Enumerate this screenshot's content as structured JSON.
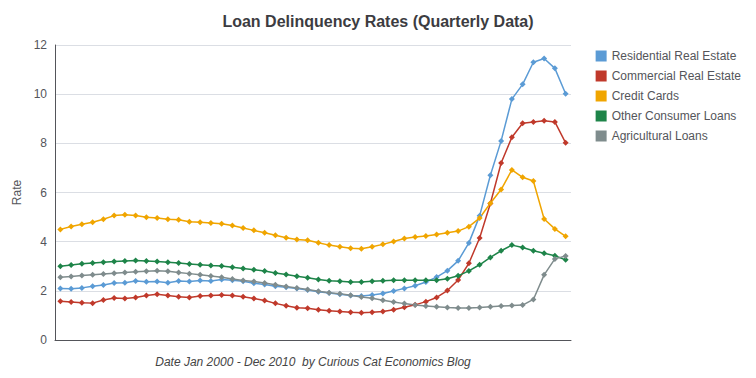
{
  "chart_data": {
    "type": "line",
    "title": "Loan Delinquency Rates (Quarterly Data)",
    "xlabel": "Date Jan 2000 - Dec 2010  by Curious Cat Economics Blog",
    "ylabel": "Rate",
    "categories": [
      null,
      null,
      null,
      null,
      null,
      null,
      null,
      null,
      null,
      null,
      null,
      null,
      null,
      null,
      null,
      null,
      null,
      null,
      null,
      null,
      null,
      null,
      null,
      null,
      null,
      null,
      null,
      null,
      null,
      null,
      null,
      null,
      null,
      null,
      null,
      null,
      null,
      null,
      null,
      null,
      null,
      null,
      null,
      null,
      null,
      null,
      null,
      null
    ],
    "ylim": [
      0,
      12
    ],
    "yticks": [
      0,
      2,
      4,
      6,
      8,
      10,
      12
    ],
    "grid": true,
    "legend": "right",
    "tick_labels": "y",
    "marker": "diamond",
    "series": [
      {
        "name": "Residential Real Estate",
        "color": "#5b9bd5",
        "values": [
          2.09,
          2.08,
          2.12,
          2.19,
          2.24,
          2.32,
          2.33,
          2.4,
          2.37,
          2.38,
          2.33,
          2.4,
          2.38,
          2.42,
          2.4,
          2.46,
          2.43,
          2.39,
          2.31,
          2.26,
          2.19,
          2.15,
          2.09,
          2.03,
          1.96,
          1.91,
          1.86,
          1.81,
          1.79,
          1.83,
          1.89,
          1.99,
          2.1,
          2.21,
          2.36,
          2.56,
          2.82,
          3.22,
          3.95,
          5.05,
          6.7,
          8.1,
          9.8,
          10.4,
          11.3,
          11.45,
          11.05,
          10.02
        ]
      },
      {
        "name": "Commercial Real Estate",
        "color": "#c0392b",
        "values": [
          1.58,
          1.55,
          1.52,
          1.5,
          1.63,
          1.71,
          1.69,
          1.73,
          1.81,
          1.86,
          1.81,
          1.76,
          1.73,
          1.79,
          1.81,
          1.83,
          1.81,
          1.76,
          1.69,
          1.61,
          1.49,
          1.39,
          1.31,
          1.29,
          1.23,
          1.19,
          1.16,
          1.13,
          1.11,
          1.13,
          1.16,
          1.23,
          1.33,
          1.43,
          1.56,
          1.73,
          2.01,
          2.44,
          3.12,
          4.15,
          5.55,
          7.2,
          8.25,
          8.82,
          8.87,
          8.92,
          8.87,
          8.02
        ]
      },
      {
        "name": "Credit Cards",
        "color": "#f0a500",
        "values": [
          4.5,
          4.62,
          4.71,
          4.79,
          4.91,
          5.06,
          5.09,
          5.06,
          4.99,
          4.96,
          4.91,
          4.89,
          4.81,
          4.79,
          4.76,
          4.73,
          4.66,
          4.56,
          4.46,
          4.36,
          4.26,
          4.16,
          4.09,
          4.06,
          3.96,
          3.86,
          3.79,
          3.73,
          3.71,
          3.79,
          3.89,
          4.01,
          4.13,
          4.19,
          4.23,
          4.29,
          4.36,
          4.43,
          4.61,
          4.96,
          5.56,
          6.12,
          6.92,
          6.62,
          6.47,
          4.92,
          4.52,
          4.22
        ]
      },
      {
        "name": "Other Consumer Loans",
        "color": "#1e8449",
        "values": [
          3.0,
          3.05,
          3.1,
          3.13,
          3.16,
          3.19,
          3.21,
          3.23,
          3.21,
          3.19,
          3.16,
          3.13,
          3.09,
          3.06,
          3.03,
          3.01,
          2.96,
          2.91,
          2.86,
          2.81,
          2.73,
          2.66,
          2.59,
          2.53,
          2.46,
          2.41,
          2.39,
          2.36,
          2.36,
          2.39,
          2.41,
          2.43,
          2.43,
          2.43,
          2.43,
          2.43,
          2.49,
          2.61,
          2.81,
          3.06,
          3.36,
          3.63,
          3.86,
          3.76,
          3.63,
          3.53,
          3.43,
          3.26
        ]
      },
      {
        "name": "Agricultural Loans",
        "color": "#7f8c8d",
        "values": [
          2.55,
          2.58,
          2.62,
          2.65,
          2.68,
          2.72,
          2.75,
          2.78,
          2.8,
          2.82,
          2.8,
          2.75,
          2.7,
          2.65,
          2.6,
          2.55,
          2.48,
          2.42,
          2.38,
          2.32,
          2.25,
          2.18,
          2.12,
          2.05,
          1.98,
          1.92,
          1.88,
          1.82,
          1.75,
          1.7,
          1.62,
          1.55,
          1.48,
          1.42,
          1.38,
          1.35,
          1.32,
          1.3,
          1.3,
          1.32,
          1.35,
          1.38,
          1.4,
          1.42,
          1.65,
          2.65,
          3.3,
          3.42
        ]
      }
    ]
  }
}
